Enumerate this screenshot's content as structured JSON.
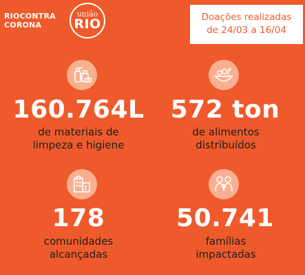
{
  "brand": {
    "line1": "RIOCONTRA",
    "line2": "CORONA"
  },
  "logo": {
    "top": "união",
    "main": "RIO"
  },
  "date_box": {
    "line1": "Doações realizadas",
    "line2": "de 24/03 a 16/04"
  },
  "stats": [
    {
      "value": "160.764L",
      "desc1": "de materiais de",
      "desc2": "limpeza e higiene",
      "icon": "cleaning-supplies-icon"
    },
    {
      "value": "572 ton",
      "desc1": "de alimentos",
      "desc2": "distribuídos",
      "icon": "food-bowl-icon"
    },
    {
      "value": "178",
      "desc1": "comunidades",
      "desc2": "alcançadas",
      "icon": "buildings-icon"
    },
    {
      "value": "50.741",
      "desc1": "famílias",
      "desc2": "impactadas",
      "icon": "family-icon"
    }
  ],
  "colors": {
    "background": "#ee5a2b",
    "icon_bg": "#f8b091",
    "text_dark": "#1f1f1f"
  }
}
